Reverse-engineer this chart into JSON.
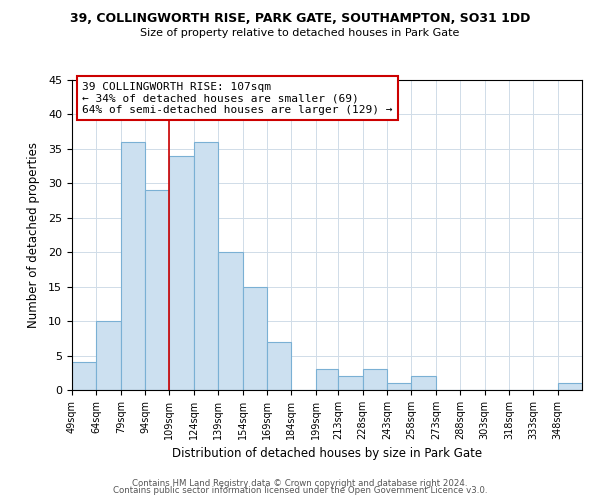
{
  "title1": "39, COLLINGWORTH RISE, PARK GATE, SOUTHAMPTON, SO31 1DD",
  "title2": "Size of property relative to detached houses in Park Gate",
  "xlabel": "Distribution of detached houses by size in Park Gate",
  "ylabel": "Number of detached properties",
  "bin_labels": [
    "49sqm",
    "64sqm",
    "79sqm",
    "94sqm",
    "109sqm",
    "124sqm",
    "139sqm",
    "154sqm",
    "169sqm",
    "184sqm",
    "199sqm",
    "213sqm",
    "228sqm",
    "243sqm",
    "258sqm",
    "273sqm",
    "288sqm",
    "303sqm",
    "318sqm",
    "333sqm",
    "348sqm"
  ],
  "bin_edges": [
    49,
    64,
    79,
    94,
    109,
    124,
    139,
    154,
    169,
    184,
    199,
    213,
    228,
    243,
    258,
    273,
    288,
    303,
    318,
    333,
    348,
    363
  ],
  "bar_heights": [
    4,
    10,
    36,
    29,
    34,
    36,
    20,
    15,
    7,
    0,
    3,
    2,
    3,
    1,
    2,
    0,
    0,
    0,
    0,
    0,
    1
  ],
  "bar_color": "#cce0f0",
  "bar_edge_color": "#7ab0d4",
  "red_line_x": 109,
  "annotation_line1": "39 COLLINGWORTH RISE: 107sqm",
  "annotation_line2": "← 34% of detached houses are smaller (69)",
  "annotation_line3": "64% of semi-detached houses are larger (129) →",
  "annotation_box_color": "#ffffff",
  "annotation_box_edge": "#cc0000",
  "ylim": [
    0,
    45
  ],
  "yticks": [
    0,
    5,
    10,
    15,
    20,
    25,
    30,
    35,
    40,
    45
  ],
  "footer1": "Contains HM Land Registry data © Crown copyright and database right 2024.",
  "footer2": "Contains public sector information licensed under the Open Government Licence v3.0.",
  "bg_color": "#ffffff",
  "grid_color": "#d0dce8"
}
